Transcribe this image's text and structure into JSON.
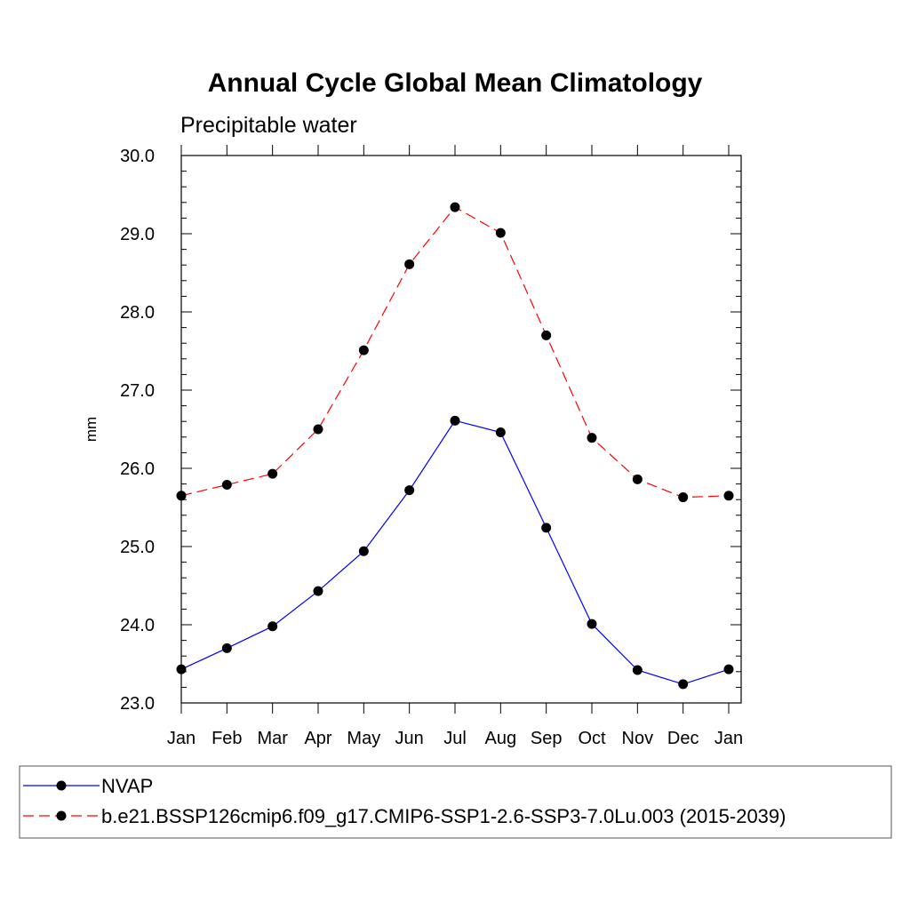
{
  "chart_data": {
    "type": "line",
    "title": "Annual Cycle Global Mean Climatology",
    "subtitle": "Precipitable water",
    "xlabel": "",
    "ylabel": "mm",
    "categories": [
      "Jan",
      "Feb",
      "Mar",
      "Apr",
      "May",
      "Jun",
      "Jul",
      "Aug",
      "Sep",
      "Oct",
      "Nov",
      "Dec",
      "Jan"
    ],
    "ylim": [
      23.0,
      30.0
    ],
    "yticks": [
      "23.0",
      "24.0",
      "25.0",
      "26.0",
      "27.0",
      "28.0",
      "29.0",
      "30.0"
    ],
    "grid": false,
    "legend_position": "bottom",
    "series": [
      {
        "name": "NVAP",
        "color": "#0000ff",
        "dashed": false,
        "values": [
          23.43,
          23.7,
          23.98,
          24.43,
          24.94,
          25.72,
          26.61,
          26.46,
          25.24,
          24.01,
          23.42,
          23.24,
          23.43
        ]
      },
      {
        "name": "b.e21.BSSP126cmip6.f09_g17.CMIP6-SSP1-2.6-SSP3-7.0Lu.003 (2015-2039)",
        "color": "#ff0000",
        "dashed": true,
        "values": [
          25.65,
          25.79,
          25.93,
          26.5,
          27.51,
          28.61,
          29.34,
          29.01,
          27.7,
          26.39,
          25.86,
          25.63,
          25.65
        ]
      }
    ]
  }
}
